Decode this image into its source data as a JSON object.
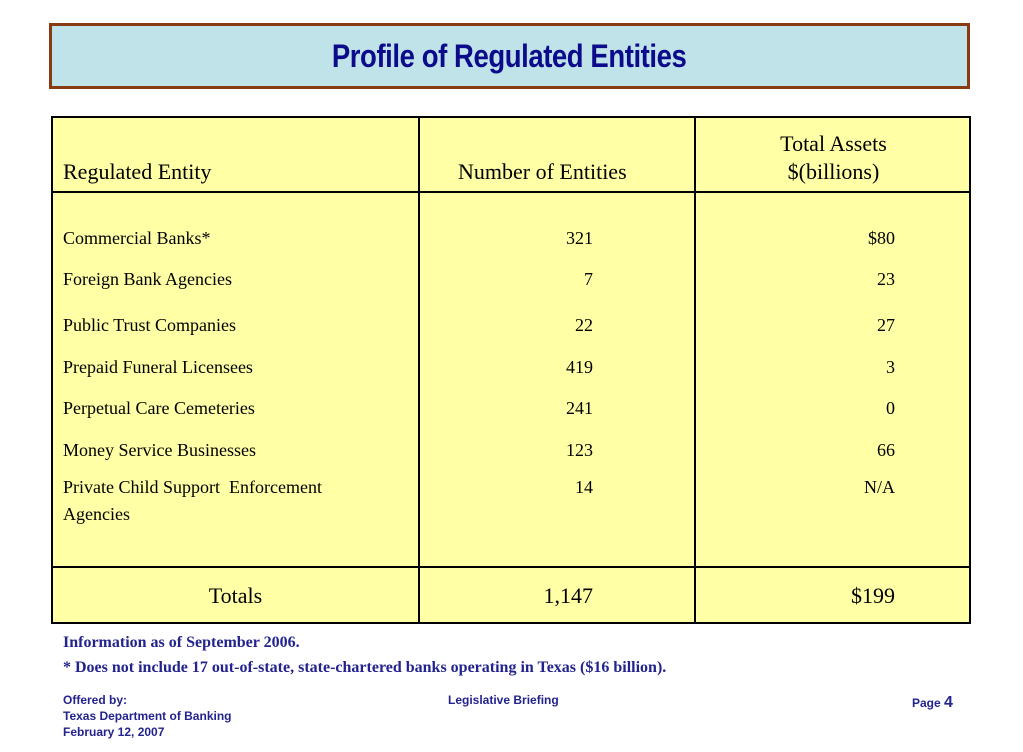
{
  "title": "Profile of Regulated Entities",
  "table": {
    "headers": {
      "entity": "Regulated Entity",
      "count": "Number of Entities",
      "assets_line1": "Total Assets",
      "assets_line2": "$(billions)"
    },
    "rows": [
      {
        "entity": "Commercial Banks*",
        "count": "321",
        "assets": "$80"
      },
      {
        "entity": "Foreign Bank Agencies",
        "count": "7",
        "assets": "23"
      },
      {
        "entity": "Public Trust Companies",
        "count": "22",
        "assets": "27"
      },
      {
        "entity": "Prepaid Funeral Licensees",
        "count": "419",
        "assets": "3"
      },
      {
        "entity": "Perpetual Care Cemeteries",
        "count": "241",
        "assets": "0"
      },
      {
        "entity": "Money Service Businesses",
        "count": "123",
        "assets": "66"
      },
      {
        "entity_line1": "Private Child Support  Enforcement",
        "entity_line2": "Agencies",
        "count": "14",
        "assets": "N/A"
      }
    ],
    "totals": {
      "label": "Totals",
      "count": "1,147",
      "assets": "$199"
    }
  },
  "notes": {
    "info": "Information as of September 2006.",
    "footnote": "* Does not include 17 out-of-state, state-chartered banks operating in Texas ($16 billion)."
  },
  "footer": {
    "offered_by": "Offered by:",
    "org": "Texas Department of Banking",
    "date": "February 12, 2007",
    "center": "Legislative Briefing",
    "page_label": "Page",
    "page_number": "4"
  }
}
